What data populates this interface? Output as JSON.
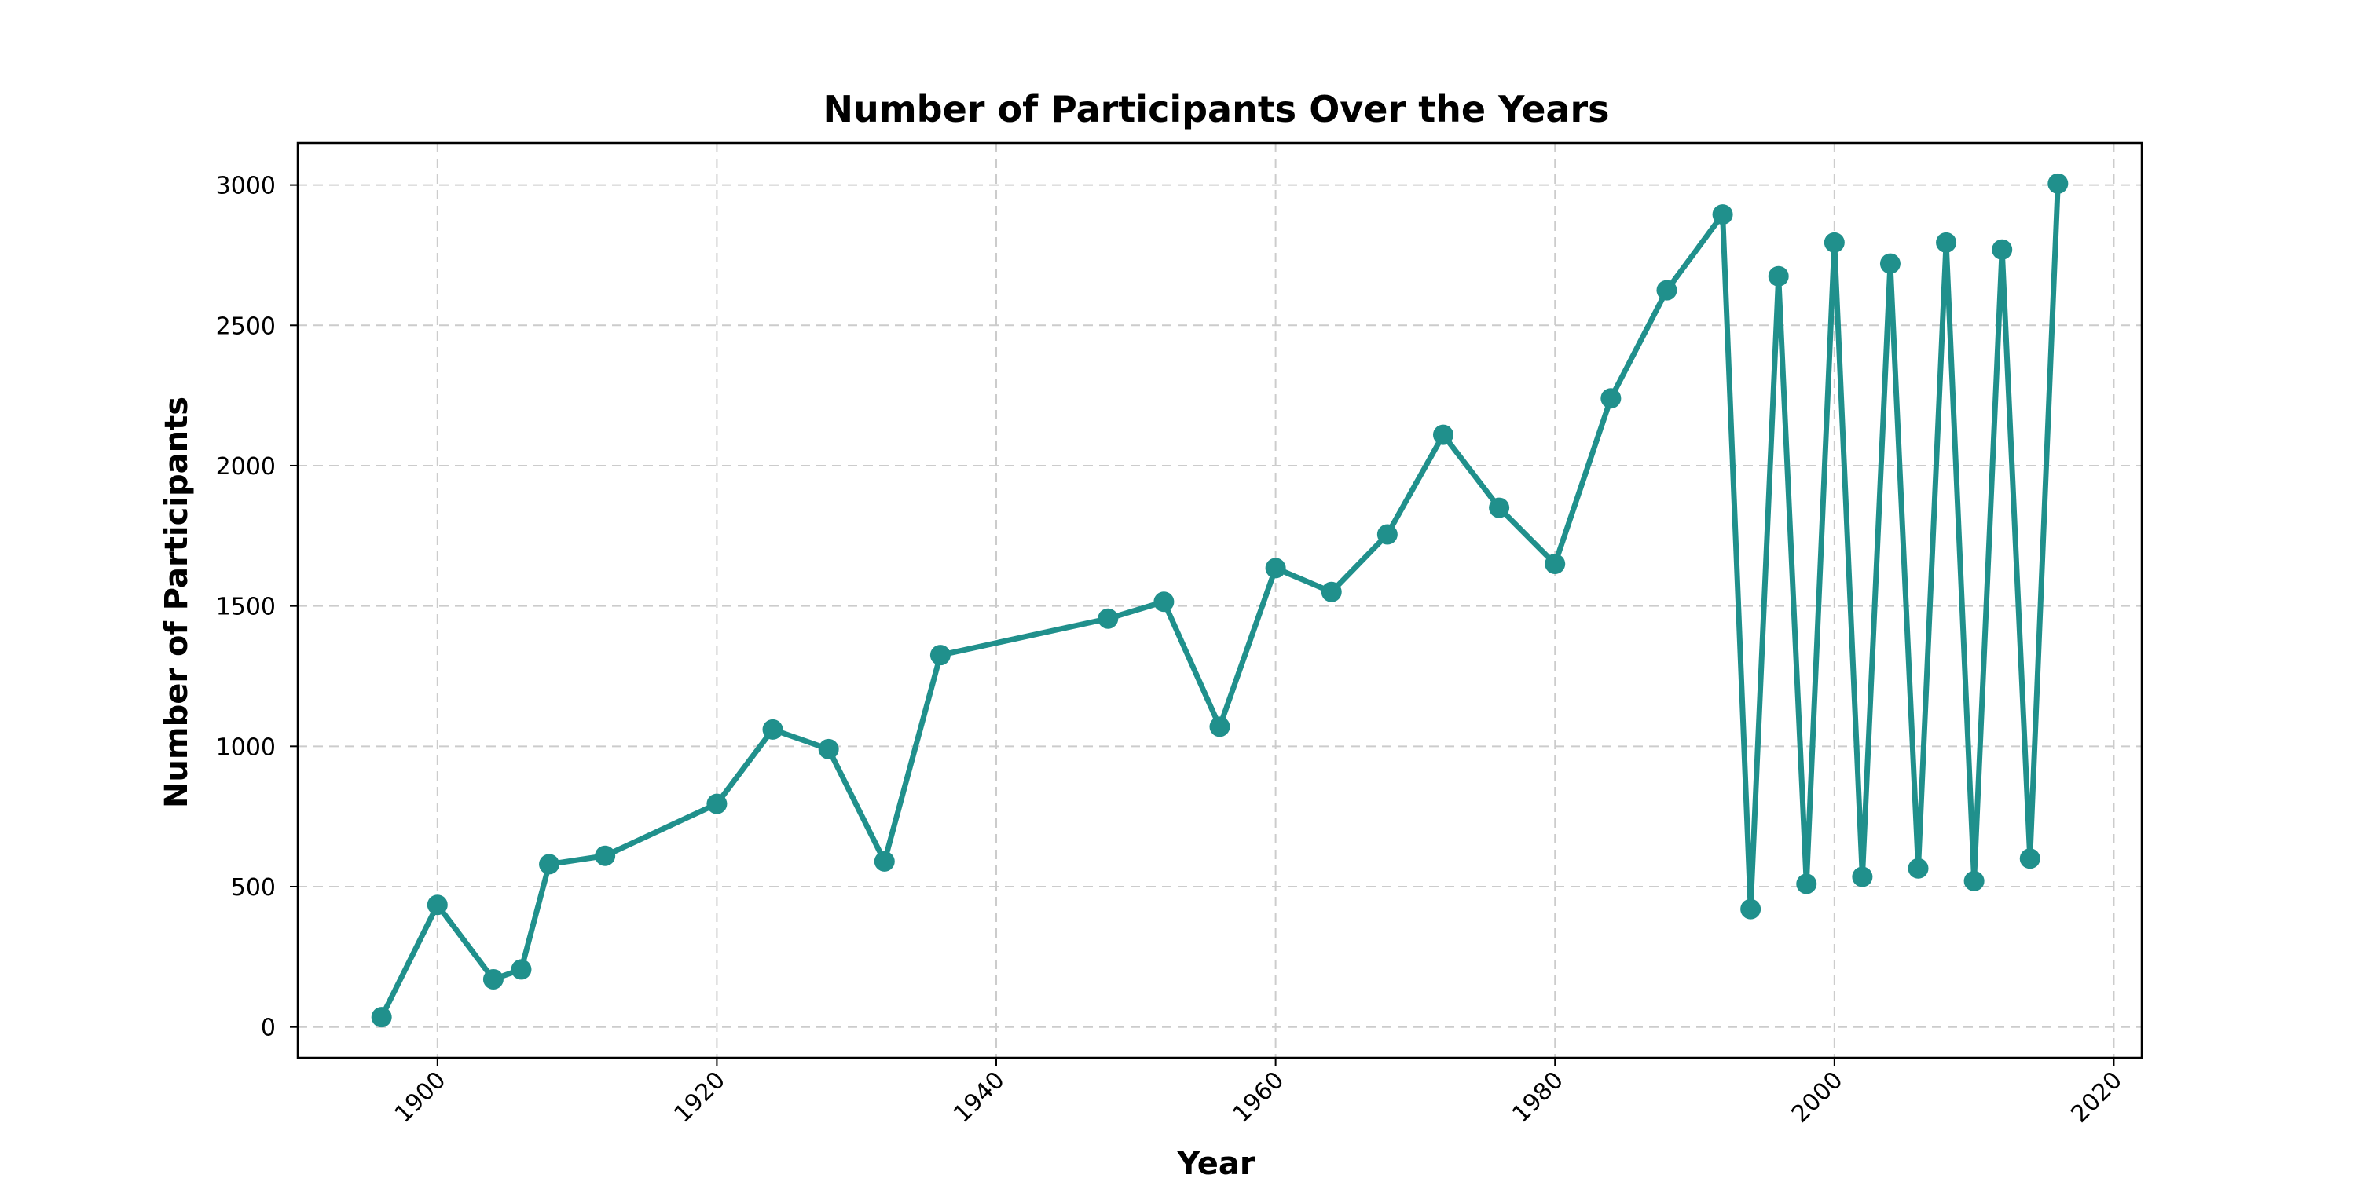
{
  "chart_data": {
    "type": "line",
    "title": "Number of Participants Over the Years",
    "xlabel": "Year",
    "ylabel": "Number of Participants",
    "xlim": [
      1890,
      2022
    ],
    "ylim": [
      -110,
      3150
    ],
    "x_ticks": [
      1900,
      1920,
      1940,
      1960,
      1980,
      2000,
      2020
    ],
    "y_ticks": [
      0,
      500,
      1000,
      1500,
      2000,
      2500,
      3000
    ],
    "x_tick_labels": [
      "1900",
      "1920",
      "1940",
      "1960",
      "1980",
      "2000",
      "2020"
    ],
    "y_tick_labels": [
      "0",
      "500",
      "1000",
      "1500",
      "2000",
      "2500",
      "3000"
    ],
    "grid": true,
    "color": "#20908c",
    "series": [
      {
        "x": [
          1896,
          1900,
          1904,
          1906,
          1908,
          1912,
          1920,
          1924,
          1928,
          1932,
          1936,
          1948,
          1952,
          1956,
          1960,
          1964,
          1968,
          1972,
          1976,
          1980,
          1984,
          1988,
          1992,
          1994,
          1996,
          1998,
          2000,
          2002,
          2004,
          2006,
          2008,
          2010,
          2012,
          2014,
          2016
        ],
        "values": [
          35,
          435,
          170,
          205,
          580,
          610,
          795,
          1060,
          990,
          590,
          1325,
          1455,
          1515,
          1070,
          1635,
          1550,
          1755,
          2110,
          1850,
          1650,
          2240,
          2625,
          2895,
          420,
          2675,
          510,
          2795,
          535,
          2720,
          565,
          2795,
          520,
          2770,
          600,
          3005
        ]
      }
    ]
  }
}
